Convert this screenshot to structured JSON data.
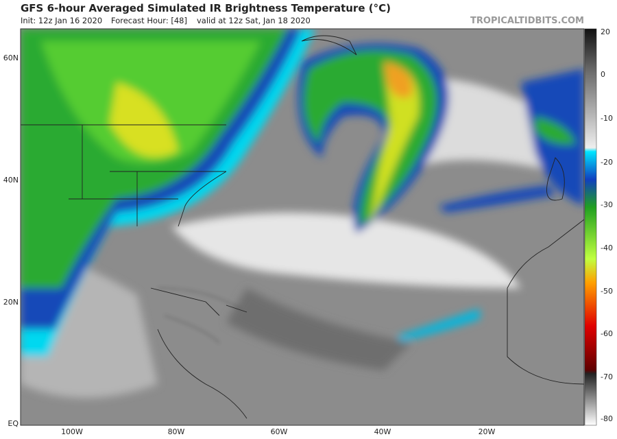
{
  "header": {
    "title": "GFS 6-hour Averaged Simulated IR Brightness Temperature (°C)",
    "init": "Init: 12z Jan 16 2020",
    "forecast_hour": "Forecast Hour: [48]",
    "valid": "valid at 12z Sat, Jan 18 2020",
    "source": "TROPICALTIDBITS.COM"
  },
  "map": {
    "latitude_labels": [
      "60N",
      "40N",
      "20N",
      "EQ"
    ],
    "longitude_labels": [
      "100W",
      "80W",
      "60W",
      "40W",
      "20W"
    ]
  },
  "colorbar": {
    "labels": [
      "20",
      "0",
      "-10",
      "-20",
      "-30",
      "-40",
      "-50",
      "-60",
      "-70",
      "-80"
    ]
  }
}
